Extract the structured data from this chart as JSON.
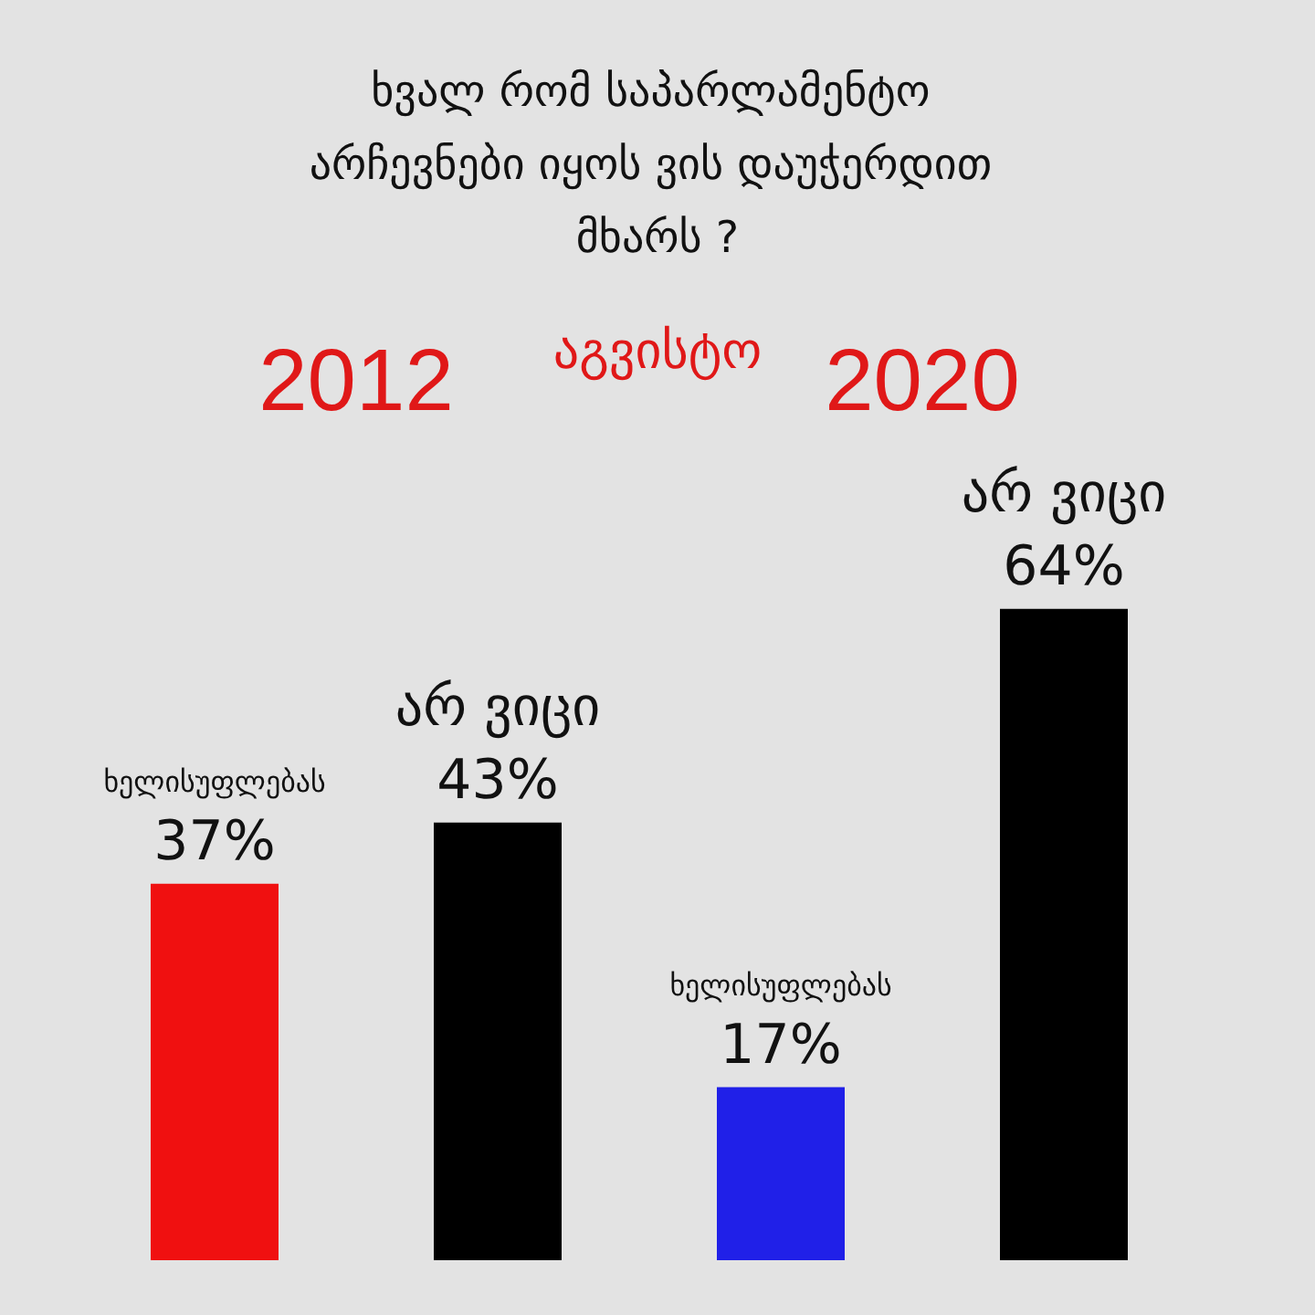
{
  "chart_data": {
    "type": "bar",
    "title": "ხვალ რომ საპარლამენტო არჩევნები იყოს ვის დაუჭერდით მხარს ?",
    "subtitle": "აგვისტო",
    "categories": [
      "ხელისუფლებას",
      "არ ვიცი",
      "ხელისუფლებას",
      "არ ვიცი"
    ],
    "values": [
      37,
      43,
      17,
      64
    ],
    "colors": [
      "#f01010",
      "#000000",
      "#2020e8",
      "#000000"
    ],
    "value_labels": [
      "37%",
      "43%",
      "17%",
      "64%"
    ],
    "annotations": [
      "2012",
      "2020"
    ]
  }
}
